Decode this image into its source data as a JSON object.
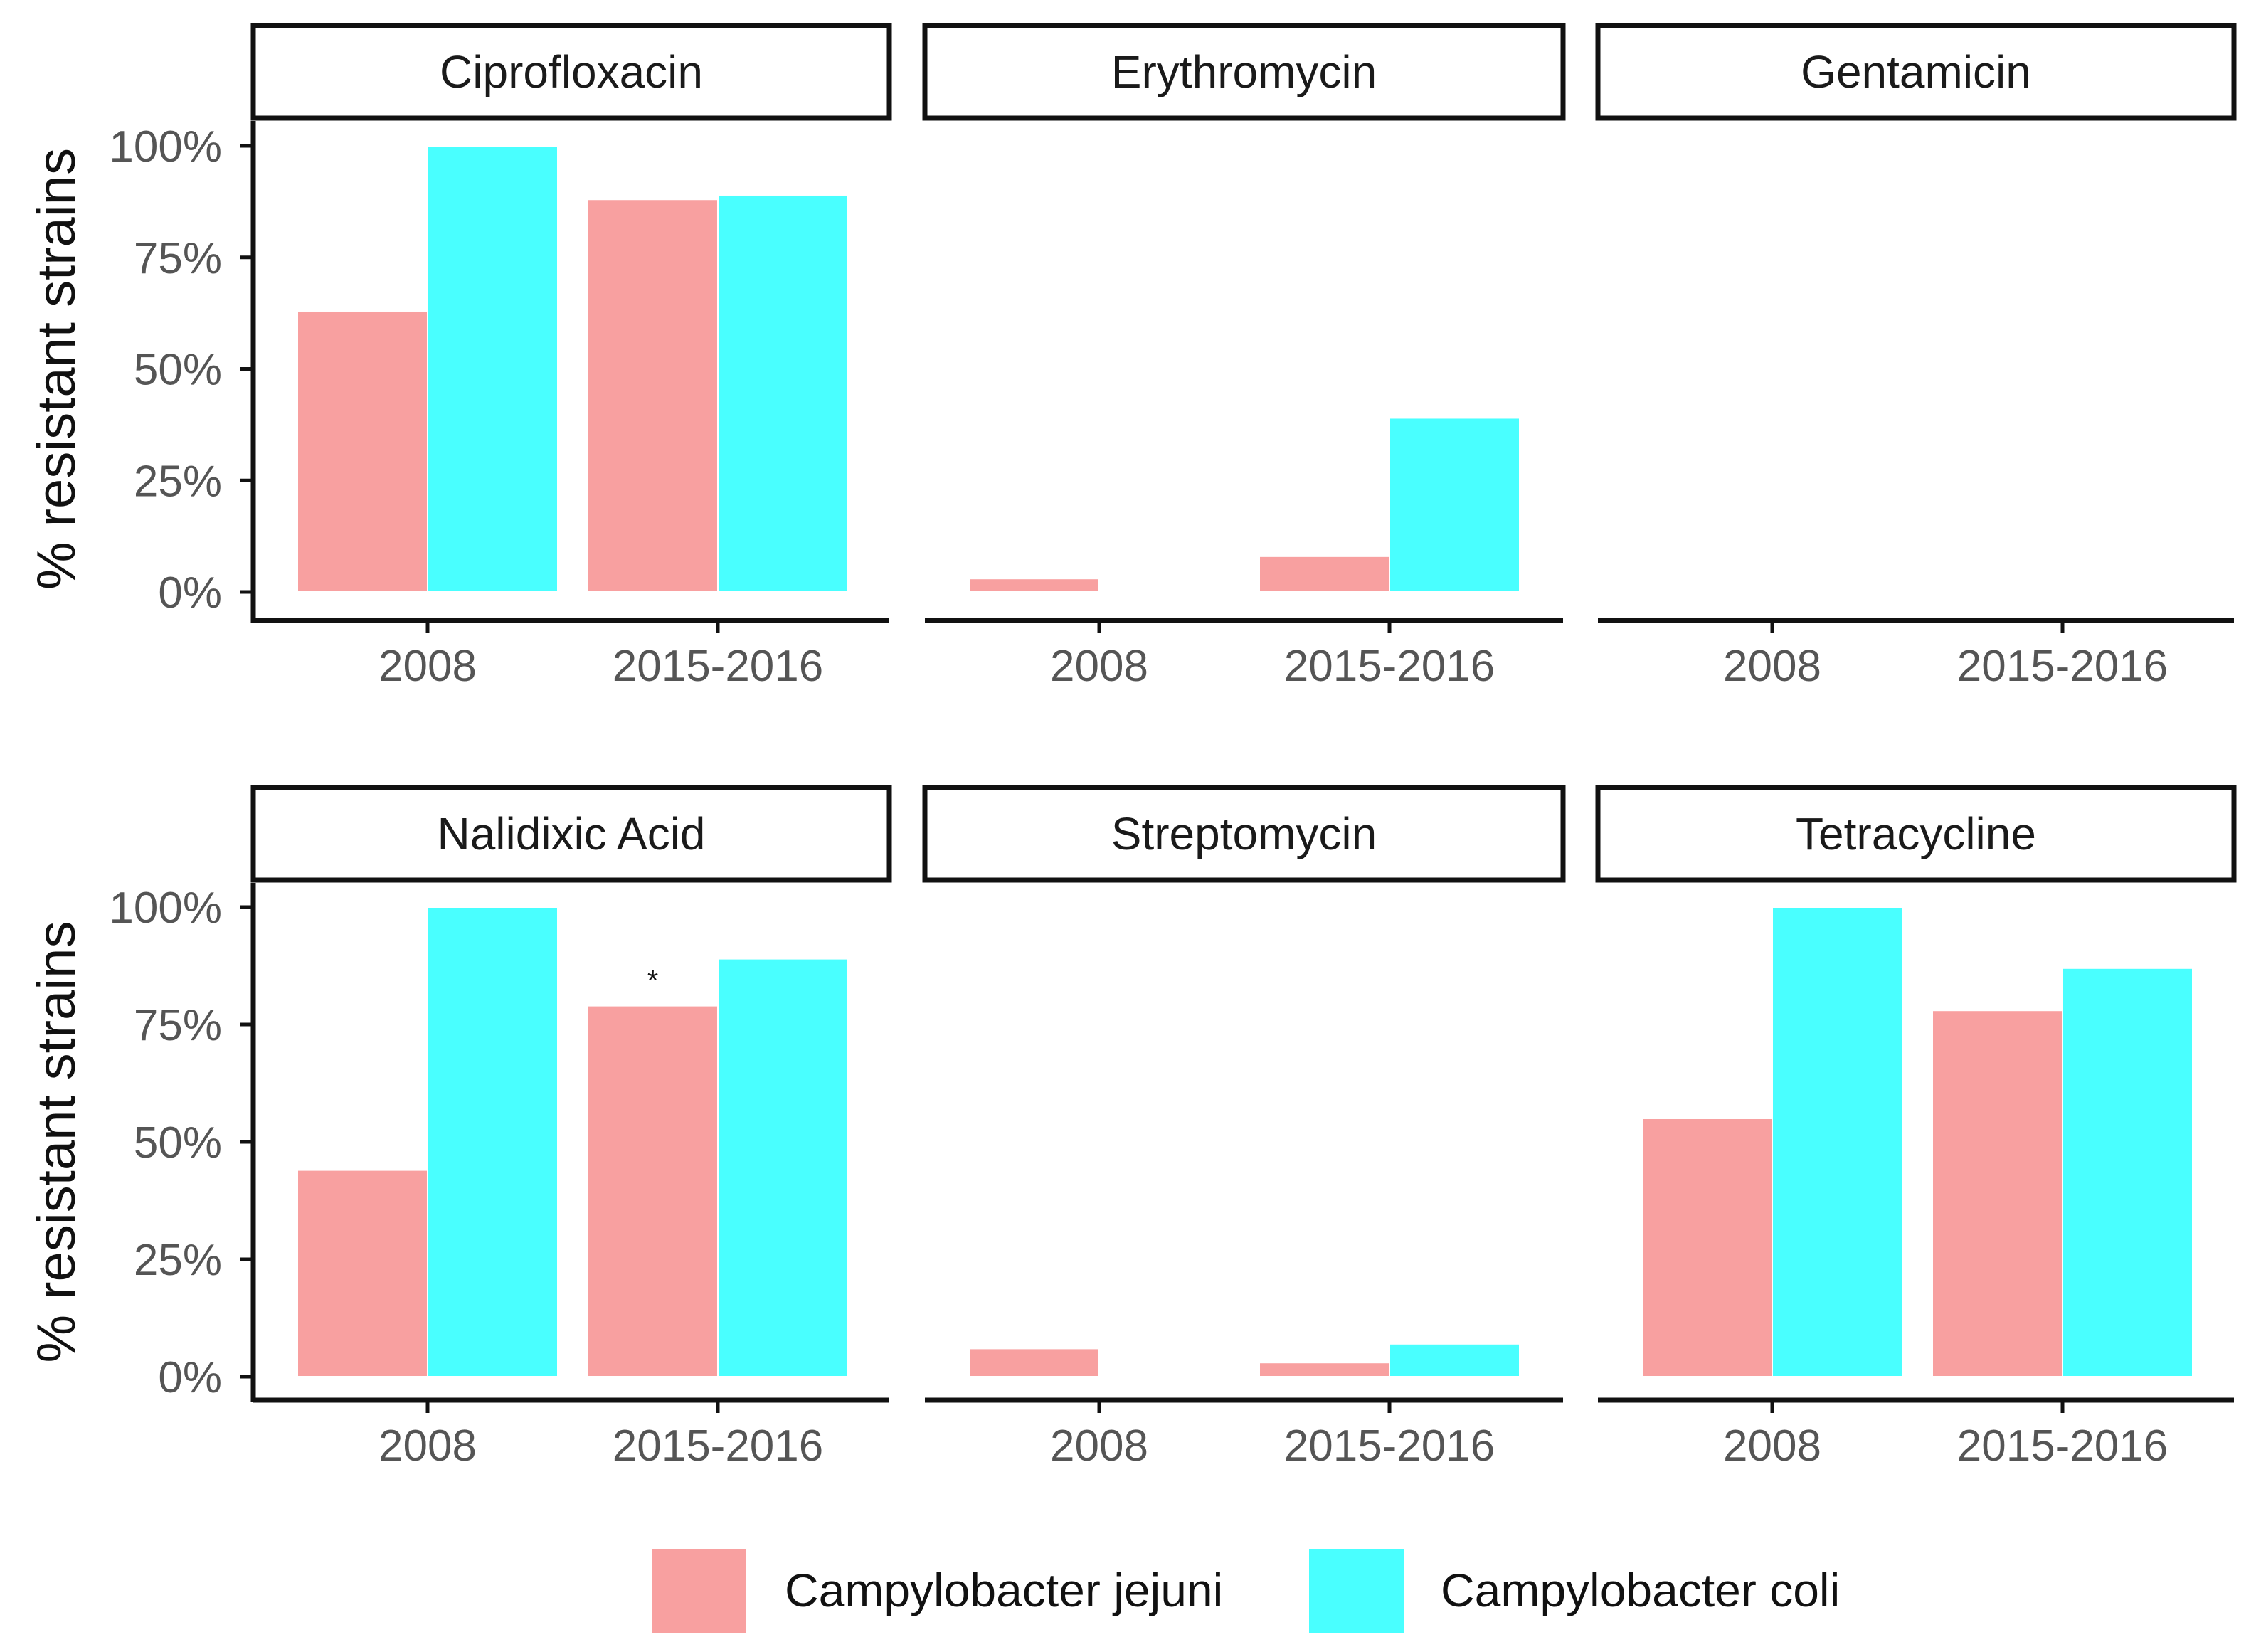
{
  "chart_data": {
    "type": "bar",
    "layout": "facet-grid 2x3",
    "ylabel": "% resistant strains",
    "ylim": [
      0,
      100
    ],
    "yticks": [
      "0%",
      "25%",
      "50%",
      "75%",
      "100%"
    ],
    "categories": [
      "2008",
      "2015-2016"
    ],
    "legend": {
      "position": "bottom",
      "entries": [
        {
          "name": "Campylobacter jejuni",
          "color": "#F8A0A0"
        },
        {
          "name": "Campylobacter coli",
          "color": "#49FFFF"
        }
      ]
    },
    "panels": [
      {
        "title": "Ciprofloxacin",
        "series": [
          {
            "name": "Campylobacter jejuni",
            "values": [
              63,
              88
            ]
          },
          {
            "name": "Campylobacter coli",
            "values": [
              100,
              89
            ]
          }
        ]
      },
      {
        "title": "Erythromycin",
        "series": [
          {
            "name": "Campylobacter jejuni",
            "values": [
              3,
              8
            ]
          },
          {
            "name": "Campylobacter coli",
            "values": [
              null,
              39
            ]
          }
        ]
      },
      {
        "title": "Gentamicin",
        "series": [
          {
            "name": "Campylobacter jejuni",
            "values": [
              null,
              null
            ]
          },
          {
            "name": "Campylobacter coli",
            "values": [
              null,
              null
            ]
          }
        ]
      },
      {
        "title": "Nalidixic Acid",
        "series": [
          {
            "name": "Campylobacter jejuni",
            "values": [
              44,
              79
            ]
          },
          {
            "name": "Campylobacter coli",
            "values": [
              100,
              89
            ]
          }
        ],
        "annotation": {
          "text": "*",
          "category": "2015-2016",
          "series": "Campylobacter jejuni"
        }
      },
      {
        "title": "Streptomycin",
        "series": [
          {
            "name": "Campylobacter jejuni",
            "values": [
              6,
              3
            ]
          },
          {
            "name": "Campylobacter coli",
            "values": [
              null,
              7
            ]
          }
        ]
      },
      {
        "title": "Tetracycline",
        "series": [
          {
            "name": "Campylobacter jejuni",
            "values": [
              55,
              78
            ]
          },
          {
            "name": "Campylobacter coli",
            "values": [
              100,
              87
            ]
          }
        ]
      }
    ]
  }
}
